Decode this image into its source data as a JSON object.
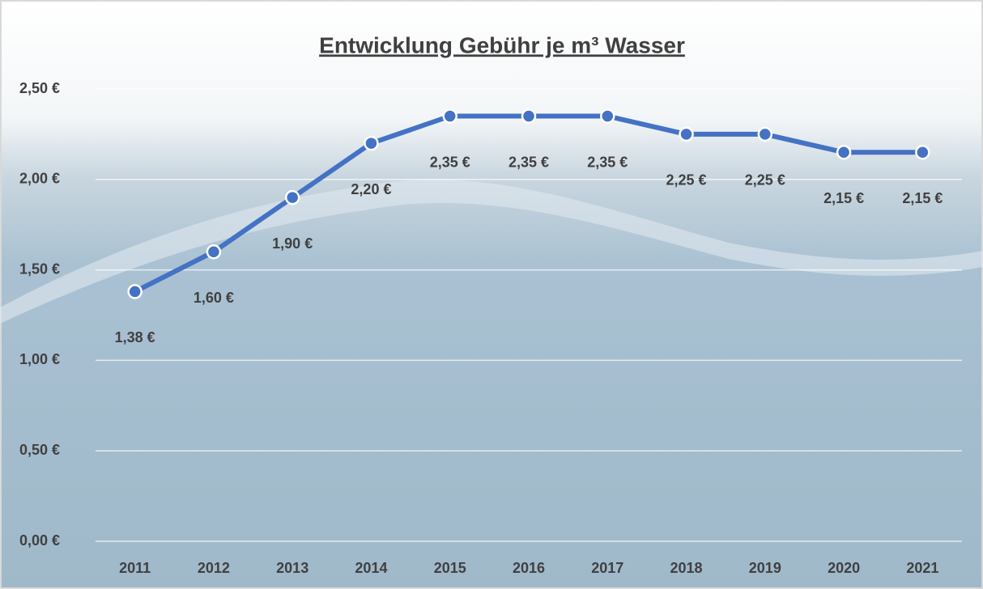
{
  "chart_data": {
    "type": "line",
    "title": "Entwicklung Gebühr je m³ Wasser",
    "categories": [
      "2011",
      "2012",
      "2013",
      "2014",
      "2015",
      "2016",
      "2017",
      "2018",
      "2019",
      "2020",
      "2021"
    ],
    "values": [
      1.38,
      1.6,
      1.9,
      2.2,
      2.35,
      2.35,
      2.35,
      2.25,
      2.25,
      2.15,
      2.15
    ],
    "value_labels": [
      "1,38 €",
      "1,60 €",
      "1,90 €",
      "2,20 €",
      "2,35 €",
      "2,35 €",
      "2,35 €",
      "2,25 €",
      "2,25 €",
      "2,15 €",
      "2,15 €"
    ],
    "color": "#4472c4",
    "ylim": [
      0,
      2.5
    ],
    "yticks": [
      {
        "value": 0,
        "label": "0,00 €"
      },
      {
        "value": 0.5,
        "label": "0,50 €"
      },
      {
        "value": 1,
        "label": "1,00 €"
      },
      {
        "value": 1.5,
        "label": "1,50 €"
      },
      {
        "value": 2,
        "label": "2,00 €"
      },
      {
        "value": 2.5,
        "label": "2,50 €"
      }
    ],
    "grid": true
  }
}
